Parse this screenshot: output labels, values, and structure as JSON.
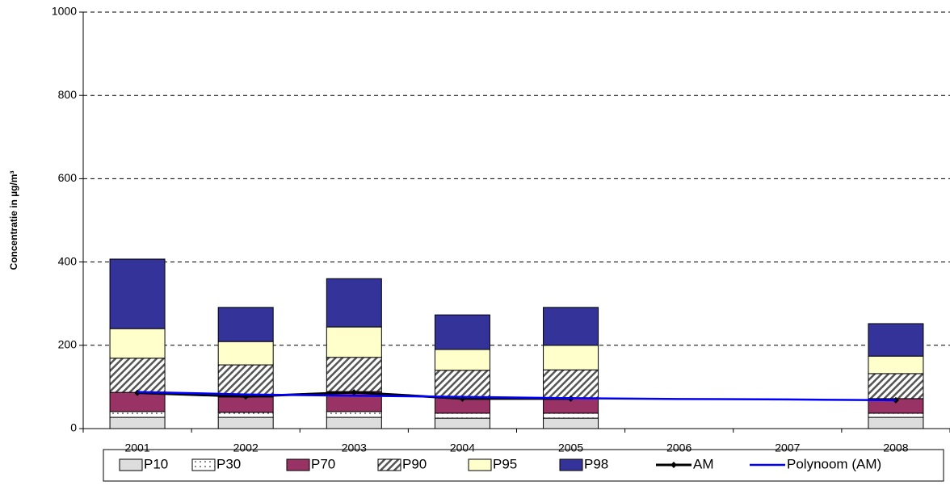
{
  "chart_data": {
    "type": "bar",
    "stacked": true,
    "y_label": "Concentratie in µg/m³",
    "categories": [
      "2001",
      "2002",
      "2003",
      "2004",
      "2005",
      "2006",
      "2007",
      "2008"
    ],
    "series": [
      {
        "name": "P10",
        "type": "bar",
        "color": "#dddddd",
        "values": [
          27,
          27,
          27,
          25,
          25,
          null,
          null,
          27
        ]
      },
      {
        "name": "P30",
        "type": "bar",
        "color": "#ffffff",
        "pattern": "dots",
        "values": [
          14,
          12,
          14,
          12,
          12,
          null,
          null,
          10
        ]
      },
      {
        "name": "P70",
        "type": "bar",
        "color": "#993366",
        "values": [
          46,
          37,
          48,
          37,
          37,
          null,
          null,
          35
        ]
      },
      {
        "name": "P90",
        "type": "bar",
        "color": "#ffffff",
        "pattern": "hatch",
        "values": [
          82,
          77,
          82,
          66,
          67,
          null,
          null,
          60
        ]
      },
      {
        "name": "P95",
        "type": "bar",
        "color": "#ffffcc",
        "values": [
          71,
          56,
          73,
          50,
          59,
          null,
          null,
          42
        ]
      },
      {
        "name": "P98",
        "type": "bar",
        "color": "#333399",
        "values": [
          167,
          82,
          116,
          83,
          91,
          null,
          null,
          78
        ]
      },
      {
        "name": "AM",
        "type": "line",
        "color": "#000000",
        "marker": true,
        "values": [
          86,
          77,
          87,
          72,
          72,
          null,
          null,
          68
        ]
      },
      {
        "name": "Polynoom (AM)",
        "type": "line",
        "color": "#0000ff",
        "values": [
          88,
          82,
          79,
          76,
          73,
          71,
          70,
          68
        ]
      }
    ],
    "ylim": [
      0,
      1000
    ],
    "yticks": [
      0,
      200,
      400,
      600,
      800,
      1000
    ],
    "grid": true
  }
}
